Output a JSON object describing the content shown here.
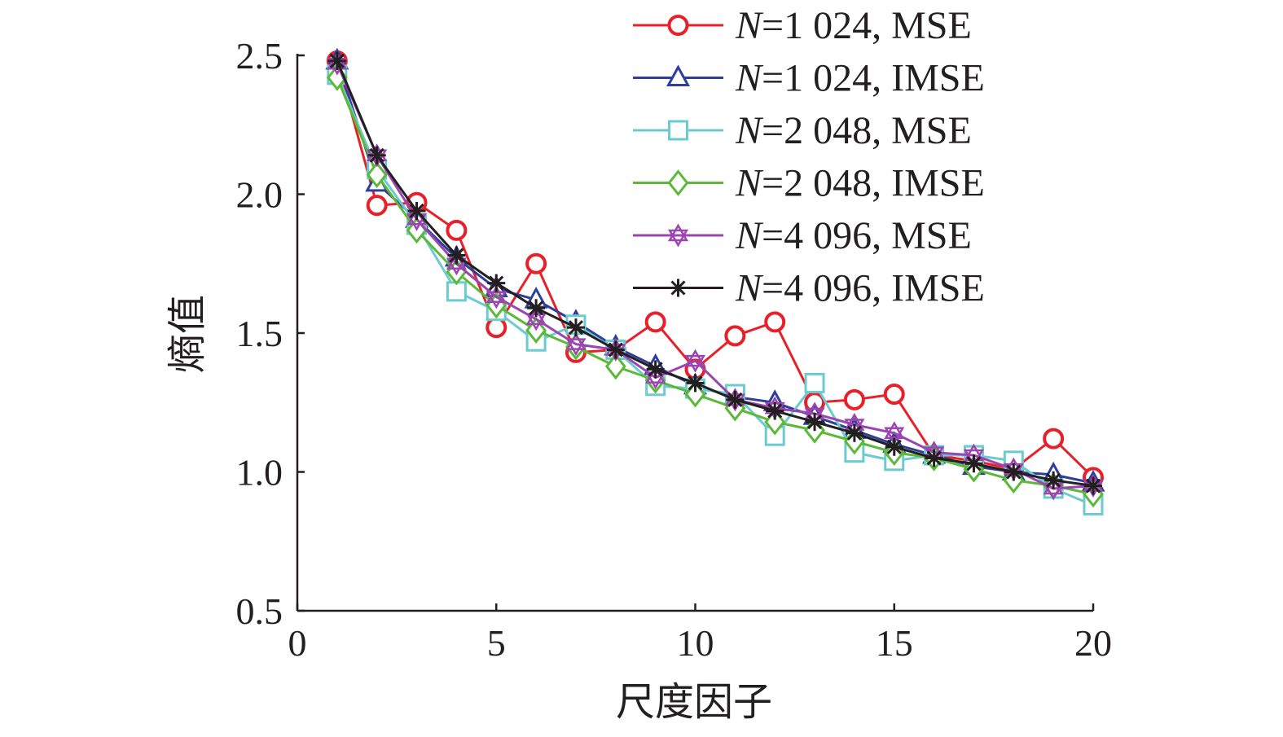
{
  "chart_data": {
    "type": "line",
    "title": "",
    "xlabel": "尺度因子",
    "ylabel": "熵值",
    "xlim": [
      0,
      20
    ],
    "ylim": [
      0.5,
      2.5
    ],
    "xticks": [
      "0",
      "5",
      "10",
      "15",
      "20"
    ],
    "yticks": [
      "0.5",
      "1.0",
      "1.5",
      "2.0",
      "2.5"
    ],
    "grid": false,
    "legend_position": "top-right",
    "x": [
      1,
      2,
      3,
      4,
      5,
      6,
      7,
      8,
      9,
      10,
      11,
      12,
      13,
      14,
      15,
      16,
      17,
      18,
      19,
      20
    ],
    "series": [
      {
        "name": "N=1 024, MSE",
        "legend_var": "N",
        "legend_rest": "=1 024, MSE",
        "color": "#e8202a",
        "marker": "circle",
        "values": [
          2.48,
          1.96,
          1.97,
          1.87,
          1.52,
          1.75,
          1.43,
          1.44,
          1.54,
          1.37,
          1.49,
          1.54,
          1.25,
          1.26,
          1.28,
          1.06,
          1.04,
          1.01,
          1.12,
          0.98
        ]
      },
      {
        "name": "N=1 024, IMSE",
        "legend_var": "N",
        "legend_rest": "=1 024, IMSE",
        "color": "#2e3f99",
        "marker": "triangle",
        "values": [
          2.48,
          2.04,
          1.91,
          1.77,
          1.66,
          1.62,
          1.54,
          1.45,
          1.38,
          1.31,
          1.27,
          1.25,
          1.2,
          1.15,
          1.1,
          1.06,
          1.02,
          1.0,
          0.99,
          0.96
        ]
      },
      {
        "name": "N=2 048, MSE",
        "legend_var": "N",
        "legend_rest": "=2 048, MSE",
        "color": "#6ccbd0",
        "marker": "square",
        "values": [
          2.43,
          2.09,
          1.89,
          1.65,
          1.58,
          1.47,
          1.53,
          1.44,
          1.31,
          1.3,
          1.28,
          1.13,
          1.32,
          1.07,
          1.04,
          1.06,
          1.06,
          1.04,
          0.94,
          0.88
        ]
      },
      {
        "name": "N=2 048, IMSE",
        "legend_var": "N",
        "legend_rest": "=2 048, IMSE",
        "color": "#5cb838",
        "marker": "diamond",
        "values": [
          2.42,
          2.07,
          1.87,
          1.72,
          1.6,
          1.51,
          1.45,
          1.38,
          1.33,
          1.28,
          1.23,
          1.18,
          1.15,
          1.11,
          1.07,
          1.05,
          1.01,
          0.97,
          0.95,
          0.92
        ]
      },
      {
        "name": "N=4 096, MSE",
        "legend_var": "N",
        "legend_rest": "=4 096, MSE",
        "color": "#9b45b0",
        "marker": "star",
        "values": [
          2.47,
          2.14,
          1.91,
          1.75,
          1.63,
          1.55,
          1.46,
          1.44,
          1.34,
          1.4,
          1.26,
          1.23,
          1.21,
          1.17,
          1.14,
          1.07,
          1.06,
          1.01,
          0.94,
          0.95
        ]
      },
      {
        "name": "N=4 096, IMSE",
        "legend_var": "N",
        "legend_rest": "=4 096, IMSE",
        "color": "#231f20",
        "marker": "asterisk",
        "values": [
          2.48,
          2.14,
          1.94,
          1.78,
          1.68,
          1.59,
          1.52,
          1.44,
          1.37,
          1.32,
          1.26,
          1.22,
          1.18,
          1.14,
          1.09,
          1.05,
          1.03,
          1.0,
          0.97,
          0.95
        ]
      }
    ]
  }
}
